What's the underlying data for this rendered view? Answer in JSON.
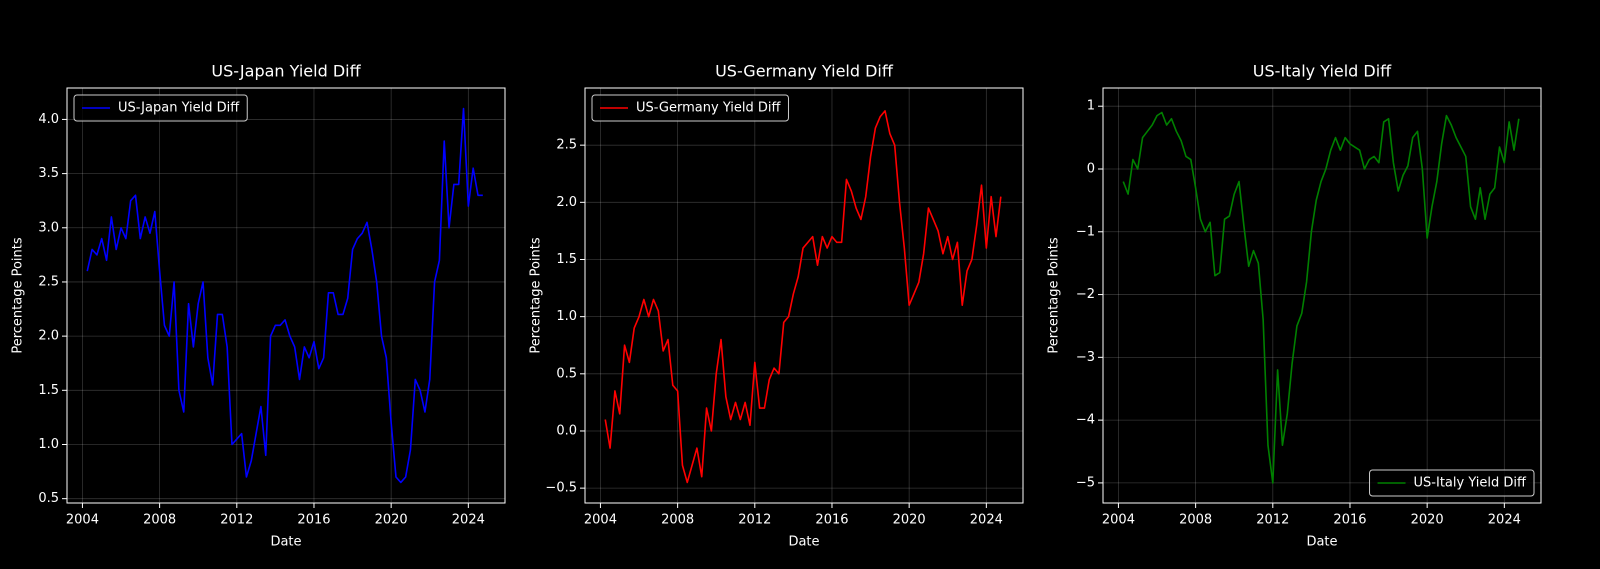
{
  "chart_data": [
    {
      "type": "line",
      "title": "US-Japan Yield Diff",
      "xlabel": "Date",
      "ylabel": "Percentage Points",
      "x": [
        2004.25,
        2004.5,
        2004.75,
        2005,
        2005.25,
        2005.5,
        2005.75,
        2006,
        2006.25,
        2006.5,
        2006.75,
        2007,
        2007.25,
        2007.5,
        2007.75,
        2008,
        2008.25,
        2008.5,
        2008.75,
        2009,
        2009.25,
        2009.5,
        2009.75,
        2010,
        2010.25,
        2010.5,
        2010.75,
        2011,
        2011.25,
        2011.5,
        2011.75,
        2012,
        2012.25,
        2012.5,
        2012.75,
        2013,
        2013.25,
        2013.5,
        2013.75,
        2014,
        2014.25,
        2014.5,
        2014.75,
        2015,
        2015.25,
        2015.5,
        2015.75,
        2016,
        2016.25,
        2016.5,
        2016.75,
        2017,
        2017.25,
        2017.5,
        2017.75,
        2018,
        2018.25,
        2018.5,
        2018.75,
        2019,
        2019.25,
        2019.5,
        2019.75,
        2020,
        2020.25,
        2020.5,
        2020.75,
        2021,
        2021.25,
        2021.5,
        2021.75,
        2022,
        2022.25,
        2022.5,
        2022.75,
        2023,
        2023.25,
        2023.5,
        2023.75,
        2024,
        2024.25,
        2024.5,
        2024.75
      ],
      "series": [
        {
          "name": "US-Japan Yield Diff",
          "color": "#0000ff",
          "values": [
            2.6,
            2.8,
            2.75,
            2.9,
            2.7,
            3.1,
            2.8,
            3.0,
            2.9,
            3.25,
            3.3,
            2.9,
            3.1,
            2.95,
            3.15,
            2.6,
            2.1,
            2.0,
            2.5,
            1.5,
            1.3,
            2.3,
            1.9,
            2.3,
            2.5,
            1.8,
            1.55,
            2.2,
            2.2,
            1.9,
            1.0,
            1.05,
            1.1,
            0.7,
            0.85,
            1.1,
            1.35,
            0.9,
            2.0,
            2.1,
            2.1,
            2.15,
            2.0,
            1.9,
            1.6,
            1.9,
            1.8,
            1.95,
            1.7,
            1.8,
            2.4,
            2.4,
            2.2,
            2.2,
            2.35,
            2.8,
            2.9,
            2.95,
            3.05,
            2.8,
            2.5,
            2.0,
            1.8,
            1.2,
            0.7,
            0.65,
            0.7,
            0.95,
            1.6,
            1.5,
            1.3,
            1.6,
            2.5,
            2.7,
            3.8,
            3.0,
            3.4,
            3.4,
            4.1,
            3.2,
            3.55,
            3.3,
            3.3
          ]
        }
      ],
      "xlim": [
        2003.2,
        2025.9
      ],
      "xticks": [
        2004,
        2008,
        2012,
        2016,
        2020,
        2024
      ],
      "ylim": [
        0.46,
        4.29
      ],
      "yticks": [
        0.5,
        {
          "value": 1,
          "label": "1.0"
        },
        1.5,
        {
          "value": 2,
          "label": "2.0"
        },
        2.5,
        {
          "value": 3,
          "label": "3.0"
        },
        3.5,
        {
          "value": 4,
          "label": "4.0"
        }
      ],
      "grid": true,
      "legend": "upper left"
    },
    {
      "type": "line",
      "title": "US-Germany Yield Diff",
      "xlabel": "Date",
      "ylabel": "Percentage Points",
      "x": [
        2004.25,
        2004.5,
        2004.75,
        2005,
        2005.25,
        2005.5,
        2005.75,
        2006,
        2006.25,
        2006.5,
        2006.75,
        2007,
        2007.25,
        2007.5,
        2007.75,
        2008,
        2008.25,
        2008.5,
        2008.75,
        2009,
        2009.25,
        2009.5,
        2009.75,
        2010,
        2010.25,
        2010.5,
        2010.75,
        2011,
        2011.25,
        2011.5,
        2011.75,
        2012,
        2012.25,
        2012.5,
        2012.75,
        2013,
        2013.25,
        2013.5,
        2013.75,
        2014,
        2014.25,
        2014.5,
        2014.75,
        2015,
        2015.25,
        2015.5,
        2015.75,
        2016,
        2016.25,
        2016.5,
        2016.75,
        2017,
        2017.25,
        2017.5,
        2017.75,
        2018,
        2018.25,
        2018.5,
        2018.75,
        2019,
        2019.25,
        2019.5,
        2019.75,
        2020,
        2020.25,
        2020.5,
        2020.75,
        2021,
        2021.25,
        2021.5,
        2021.75,
        2022,
        2022.25,
        2022.5,
        2022.75,
        2023,
        2023.25,
        2023.5,
        2023.75,
        2024,
        2024.25,
        2024.5,
        2024.75
      ],
      "series": [
        {
          "name": "US-Germany Yield Diff",
          "color": "#ff0000",
          "values": [
            0.1,
            -0.15,
            0.35,
            0.15,
            0.75,
            0.6,
            0.9,
            1.0,
            1.15,
            1.0,
            1.15,
            1.05,
            0.7,
            0.8,
            0.4,
            0.35,
            -0.3,
            -0.45,
            -0.3,
            -0.15,
            -0.4,
            0.2,
            0.0,
            0.5,
            0.8,
            0.3,
            0.1,
            0.25,
            0.1,
            0.25,
            0.05,
            0.6,
            0.2,
            0.2,
            0.45,
            0.55,
            0.5,
            0.95,
            1.0,
            1.2,
            1.35,
            1.6,
            1.65,
            1.7,
            1.45,
            1.7,
            1.6,
            1.7,
            1.65,
            1.65,
            2.2,
            2.1,
            1.95,
            1.85,
            2.05,
            2.4,
            2.65,
            2.75,
            2.8,
            2.6,
            2.5,
            2.0,
            1.6,
            1.1,
            1.2,
            1.3,
            1.55,
            1.95,
            1.85,
            1.75,
            1.55,
            1.7,
            1.5,
            1.65,
            1.1,
            1.4,
            1.5,
            1.8,
            2.15,
            1.6,
            2.05,
            1.7,
            2.05
          ]
        }
      ],
      "xlim": [
        2003.2,
        2025.9
      ],
      "xticks": [
        2004,
        2008,
        2012,
        2016,
        2020,
        2024
      ],
      "ylim": [
        -0.63,
        3.0
      ],
      "yticks": [
        {
          "value": -0.5,
          "label": "−0.5"
        },
        {
          "value": 0,
          "label": "0.0"
        },
        0.5,
        {
          "value": 1,
          "label": "1.0"
        },
        1.5,
        {
          "value": 2,
          "label": "2.0"
        },
        2.5
      ],
      "grid": true,
      "legend": "upper left"
    },
    {
      "type": "line",
      "title": "US-Italy Yield Diff",
      "xlabel": "Date",
      "ylabel": "Percentage Points",
      "x": [
        2004.25,
        2004.5,
        2004.75,
        2005,
        2005.25,
        2005.5,
        2005.75,
        2006,
        2006.25,
        2006.5,
        2006.75,
        2007,
        2007.25,
        2007.5,
        2007.75,
        2008,
        2008.25,
        2008.5,
        2008.75,
        2009,
        2009.25,
        2009.5,
        2009.75,
        2010,
        2010.25,
        2010.5,
        2010.75,
        2011,
        2011.25,
        2011.5,
        2011.75,
        2012,
        2012.25,
        2012.5,
        2012.75,
        2013,
        2013.25,
        2013.5,
        2013.75,
        2014,
        2014.25,
        2014.5,
        2014.75,
        2015,
        2015.25,
        2015.5,
        2015.75,
        2016,
        2016.25,
        2016.5,
        2016.75,
        2017,
        2017.25,
        2017.5,
        2017.75,
        2018,
        2018.25,
        2018.5,
        2018.75,
        2019,
        2019.25,
        2019.5,
        2019.75,
        2020,
        2020.25,
        2020.5,
        2020.75,
        2021,
        2021.25,
        2021.5,
        2021.75,
        2022,
        2022.25,
        2022.5,
        2022.75,
        2023,
        2023.25,
        2023.5,
        2023.75,
        2024,
        2024.25,
        2024.5,
        2024.75
      ],
      "series": [
        {
          "name": "US-Italy Yield Diff",
          "color": "#008000",
          "values": [
            -0.2,
            -0.4,
            0.15,
            0.0,
            0.5,
            0.6,
            0.7,
            0.85,
            0.9,
            0.7,
            0.8,
            0.6,
            0.45,
            0.2,
            0.15,
            -0.3,
            -0.8,
            -1.0,
            -0.85,
            -1.7,
            -1.65,
            -0.8,
            -0.75,
            -0.4,
            -0.2,
            -0.9,
            -1.55,
            -1.3,
            -1.5,
            -2.4,
            -4.4,
            -5.0,
            -3.2,
            -4.4,
            -3.9,
            -3.1,
            -2.5,
            -2.3,
            -1.8,
            -1.0,
            -0.5,
            -0.2,
            0.0,
            0.3,
            0.5,
            0.3,
            0.5,
            0.4,
            0.35,
            0.3,
            0.0,
            0.15,
            0.2,
            0.1,
            0.75,
            0.8,
            0.1,
            -0.35,
            -0.1,
            0.05,
            0.5,
            0.6,
            0.0,
            -1.1,
            -0.6,
            -0.2,
            0.4,
            0.85,
            0.7,
            0.5,
            0.35,
            0.2,
            -0.6,
            -0.8,
            -0.3,
            -0.8,
            -0.4,
            -0.3,
            0.35,
            0.1,
            0.75,
            0.3,
            0.8
          ]
        }
      ],
      "xlim": [
        2003.2,
        2025.9
      ],
      "xticks": [
        2004,
        2008,
        2012,
        2016,
        2020,
        2024
      ],
      "ylim": [
        -5.32,
        1.29
      ],
      "yticks": [
        {
          "value": -5,
          "label": "−5"
        },
        {
          "value": -4,
          "label": "−4"
        },
        {
          "value": -3,
          "label": "−3"
        },
        {
          "value": -2,
          "label": "−2"
        },
        {
          "value": -1,
          "label": "−1"
        },
        0,
        1
      ],
      "grid": true,
      "legend": "lower right"
    }
  ]
}
